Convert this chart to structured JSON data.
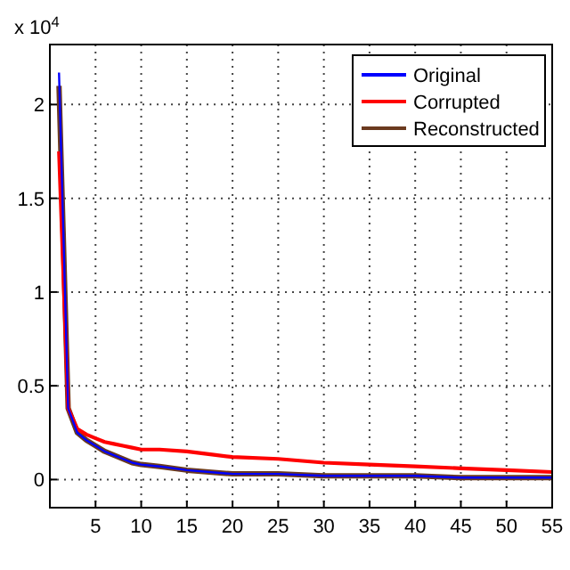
{
  "chart_data": {
    "type": "line",
    "x": [
      1,
      2,
      3,
      4,
      5,
      6,
      7,
      8,
      9,
      10,
      12,
      15,
      20,
      25,
      30,
      35,
      40,
      45,
      50,
      55
    ],
    "series": [
      {
        "name": "Original",
        "color": "#0000ff",
        "values": [
          2.17,
          0.38,
          0.25,
          0.21,
          0.18,
          0.15,
          0.13,
          0.11,
          0.09,
          0.08,
          0.07,
          0.05,
          0.03,
          0.03,
          0.02,
          0.02,
          0.02,
          0.01,
          0.01,
          0.01
        ]
      },
      {
        "name": "Corrupted",
        "color": "#ff0000",
        "values": [
          1.75,
          0.38,
          0.27,
          0.24,
          0.22,
          0.2,
          0.19,
          0.18,
          0.17,
          0.16,
          0.16,
          0.15,
          0.12,
          0.11,
          0.09,
          0.08,
          0.07,
          0.06,
          0.05,
          0.04
        ]
      },
      {
        "name": "Reconstructed",
        "color": "#6b3a1f",
        "values": [
          2.1,
          0.38,
          0.25,
          0.21,
          0.18,
          0.15,
          0.13,
          0.11,
          0.09,
          0.08,
          0.07,
          0.05,
          0.03,
          0.03,
          0.02,
          0.02,
          0.02,
          0.01,
          0.01,
          0.01
        ]
      }
    ],
    "xlim": [
      0,
      55
    ],
    "xticks": [
      5,
      10,
      15,
      20,
      25,
      30,
      35,
      40,
      45,
      50,
      55
    ],
    "ylim": [
      -0.15,
      2.32
    ],
    "yticks": [
      0,
      0.5,
      1,
      1.5,
      2
    ],
    "annotations": [
      "x 10$^{4}$"
    ],
    "grid": true,
    "legend": "top right",
    "line_style": "solid",
    "marker": "none"
  }
}
